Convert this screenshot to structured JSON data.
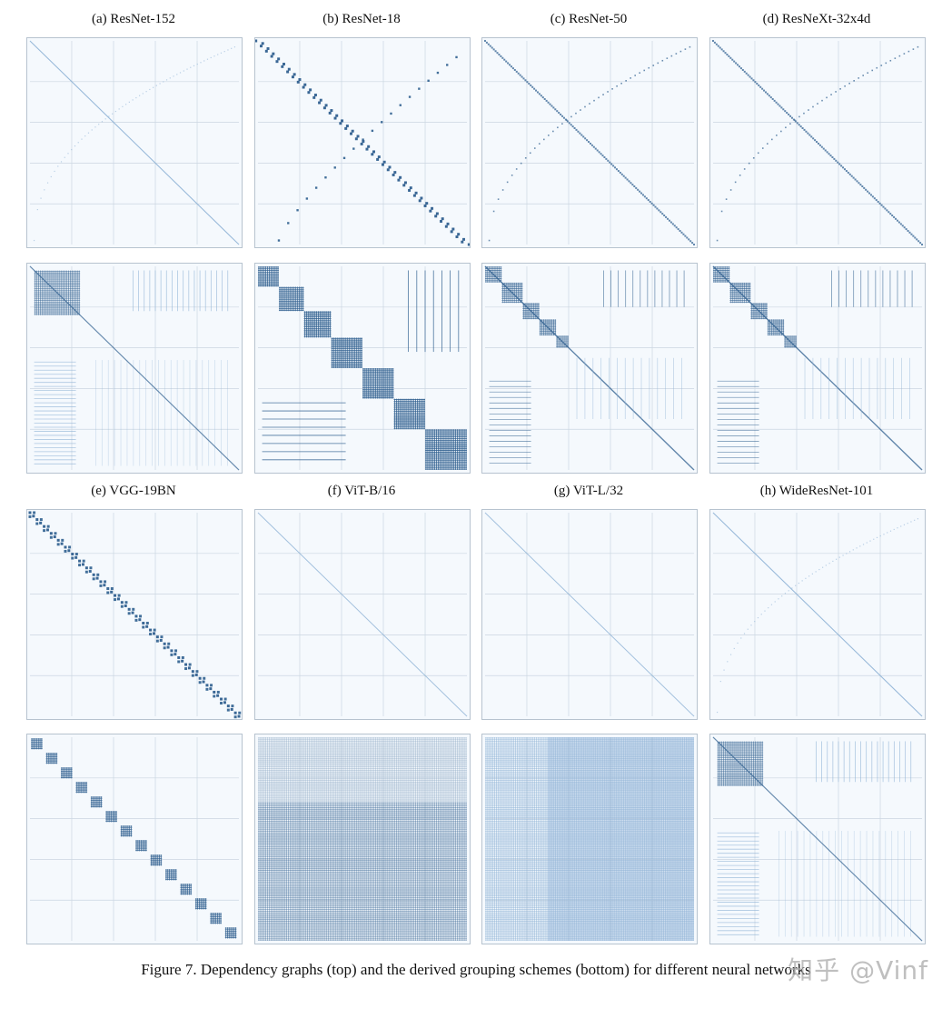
{
  "figure": {
    "caption": "Figure 7. Dependency graphs (top) and the derived grouping schemes (bottom) for different neural networks",
    "watermark": "知乎 @Vinf",
    "colors": {
      "background": "#f5f9fd",
      "grid": "#cbd6e1",
      "frame": "#b7c3cf",
      "mark_dark": "#2f5f8f",
      "mark_light": "#8fb3d6"
    }
  },
  "panels": [
    {
      "label": "(a) ResNet-152",
      "top_graph": "diag-faint-curve",
      "bottom_graph": "block-large-sparse"
    },
    {
      "label": "(b) ResNet-18",
      "top_graph": "diag-x-bold",
      "bottom_graph": "blocks-x-bold"
    },
    {
      "label": "(c) ResNet-50",
      "top_graph": "diag-curve-medium",
      "bottom_graph": "blocks-staircase"
    },
    {
      "label": "(d) ResNeXt-32x4d",
      "top_graph": "diag-curve-medium",
      "bottom_graph": "blocks-staircase"
    },
    {
      "label": "(e) VGG-19BN",
      "top_graph": "diag-bold-pairs",
      "bottom_graph": "blocks-diagonal"
    },
    {
      "label": "(f) ViT-B/16",
      "top_graph": "diag-faint",
      "bottom_graph": "dense-grid-dark"
    },
    {
      "label": "(g) ViT-L/32",
      "top_graph": "diag-faint",
      "bottom_graph": "dense-grid-light"
    },
    {
      "label": "(h) WideResNet-101",
      "top_graph": "diag-faint-curve",
      "bottom_graph": "block-large-sparse"
    }
  ]
}
